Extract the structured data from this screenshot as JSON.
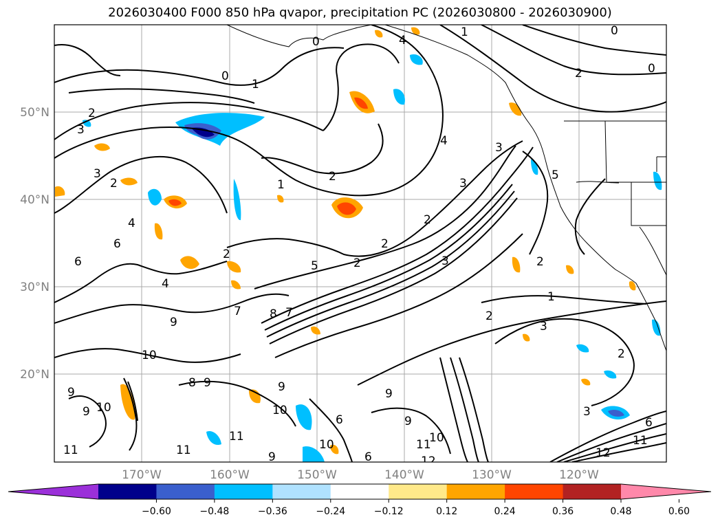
{
  "title": "2026030400 F000 850 hPa qvapor, precipitation PC (2026030800 - 2026030900)",
  "map": {
    "lat_labels": [
      "50°N",
      "40°N",
      "30°N",
      "20°N"
    ],
    "lon_labels": [
      "170°W",
      "160°W",
      "150°W",
      "140°W",
      "130°W",
      "120°W"
    ],
    "contour_labels": [
      "0",
      "1",
      "2",
      "3",
      "4",
      "5",
      "6",
      "7",
      "8",
      "9",
      "10",
      "11",
      "12"
    ]
  },
  "colorbar": {
    "ticks": [
      "−0.60",
      "−0.48",
      "−0.36",
      "−0.24",
      "−0.12",
      "0.12",
      "0.24",
      "0.36",
      "0.48",
      "0.60"
    ],
    "colors": [
      "#9b30d9",
      "#00008b",
      "#3a5fcd",
      "#00bfff",
      "#b0e2ff",
      "#ffffff",
      "#ffe98a",
      "#ffa500",
      "#ff4500",
      "#b22222",
      "#ff88aa"
    ]
  }
}
